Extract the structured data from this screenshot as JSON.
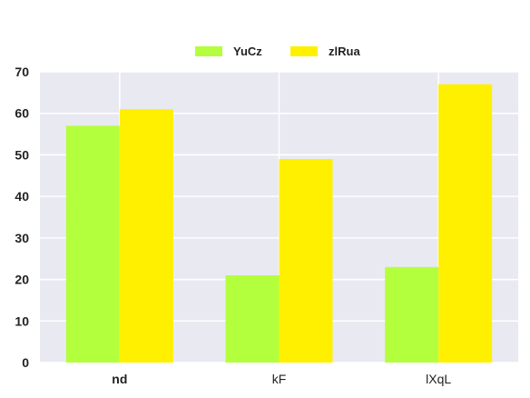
{
  "chart_data": {
    "type": "bar",
    "categories": [
      "nd",
      "kF",
      "lXqL"
    ],
    "series": [
      {
        "name": "YuCz",
        "values": [
          57,
          21,
          23
        ],
        "color": "#b3ff3e"
      },
      {
        "name": "zlRua",
        "values": [
          61,
          49,
          67
        ],
        "color": "#fff000"
      }
    ],
    "ylim": [
      0,
      70
    ],
    "yticks": [
      0,
      10,
      20,
      30,
      40,
      50,
      60,
      70
    ],
    "grid": true,
    "legend_position": "top-center",
    "plot_background": "#e9e9f2",
    "grid_color": "#ffffff"
  }
}
